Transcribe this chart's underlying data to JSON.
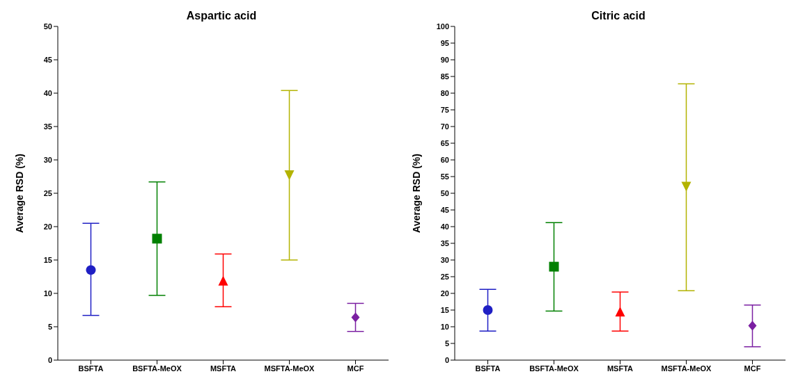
{
  "chart_data": [
    {
      "type": "scatter",
      "title": "Aspartic acid",
      "ylabel": "Average RSD (%)",
      "categories": [
        "BSFTA",
        "BSFTA-MeOX",
        "MSFTA",
        "MSFTA-MeOX",
        "MCF"
      ],
      "ylim": [
        0,
        50
      ],
      "yticks": [
        0,
        5,
        10,
        15,
        20,
        25,
        30,
        35,
        40,
        45,
        50
      ],
      "grid": false,
      "legend": false,
      "series": [
        {
          "color": "#1f1fc4",
          "marker": "circle",
          "values": [
            13.5,
            null,
            null,
            null,
            null
          ],
          "errors": [
            [
              6.7,
              20.5
            ],
            null,
            null,
            null,
            null
          ]
        },
        {
          "color": "#008000",
          "marker": "square",
          "values": [
            null,
            18.2,
            null,
            null,
            null
          ],
          "errors": [
            null,
            [
              9.7,
              26.7
            ],
            null,
            null,
            null
          ]
        },
        {
          "color": "#ff0000",
          "marker": "triangle",
          "values": [
            null,
            null,
            11.8,
            null,
            null
          ],
          "errors": [
            null,
            null,
            [
              8.0,
              15.9
            ],
            null,
            null
          ]
        },
        {
          "color": "#b3b300",
          "marker": "triangle-down",
          "values": [
            null,
            null,
            null,
            27.8,
            null
          ],
          "errors": [
            null,
            null,
            null,
            [
              15.0,
              40.4
            ],
            null
          ]
        },
        {
          "color": "#7b1fa2",
          "marker": "diamond",
          "values": [
            null,
            null,
            null,
            null,
            6.4
          ],
          "errors": [
            null,
            null,
            null,
            null,
            [
              4.3,
              8.5
            ]
          ]
        }
      ]
    },
    {
      "type": "scatter",
      "title": "Citric acid",
      "ylabel": "Average RSD (%)",
      "categories": [
        "BSFTA",
        "BSFTA-MeOX",
        "MSFTA",
        "MSFTA-MeOX",
        "MCF"
      ],
      "ylim": [
        0,
        100
      ],
      "yticks": [
        0,
        5,
        10,
        15,
        20,
        25,
        30,
        35,
        40,
        45,
        50,
        55,
        60,
        65,
        70,
        75,
        80,
        85,
        90,
        95,
        100
      ],
      "grid": false,
      "legend": false,
      "series": [
        {
          "color": "#1f1fc4",
          "marker": "circle",
          "values": [
            15.0,
            null,
            null,
            null,
            null
          ],
          "errors": [
            [
              8.7,
              21.2
            ],
            null,
            null,
            null,
            null
          ]
        },
        {
          "color": "#008000",
          "marker": "square",
          "values": [
            null,
            28.0,
            null,
            null,
            null
          ],
          "errors": [
            null,
            [
              14.7,
              41.2
            ],
            null,
            null,
            null
          ]
        },
        {
          "color": "#ff0000",
          "marker": "triangle",
          "values": [
            null,
            null,
            14.3,
            null,
            null
          ],
          "errors": [
            null,
            null,
            [
              8.7,
              20.4
            ],
            null,
            null
          ]
        },
        {
          "color": "#b3b300",
          "marker": "triangle-down",
          "values": [
            null,
            null,
            null,
            52.2,
            null
          ],
          "errors": [
            null,
            null,
            null,
            [
              20.8,
              82.8
            ],
            null
          ]
        },
        {
          "color": "#7b1fa2",
          "marker": "diamond",
          "values": [
            null,
            null,
            null,
            null,
            10.3
          ],
          "errors": [
            null,
            null,
            null,
            null,
            [
              4.0,
              16.5
            ]
          ]
        }
      ]
    }
  ]
}
